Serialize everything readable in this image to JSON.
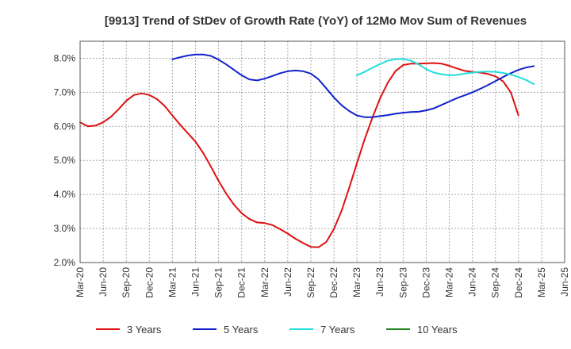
{
  "chart_data": {
    "type": "line",
    "title": "[9913]  Trend of StDev of Growth Rate (YoY) of 12Mo Mov Sum of Revenues",
    "xlabel": "",
    "ylabel": "",
    "ylim": [
      2.0,
      8.5
    ],
    "yticks": [
      2.0,
      3.0,
      4.0,
      5.0,
      6.0,
      7.0,
      8.0
    ],
    "ytick_labels": [
      "2.0%",
      "3.0%",
      "4.0%",
      "5.0%",
      "6.0%",
      "7.0%",
      "8.0%"
    ],
    "xtick_labels": [
      "Mar-20",
      "Jun-20",
      "Sep-20",
      "Dec-20",
      "Mar-21",
      "Jun-21",
      "Sep-21",
      "Dec-21",
      "Mar-22",
      "Jun-22",
      "Sep-22",
      "Dec-22",
      "Mar-23",
      "Jun-23",
      "Sep-23",
      "Dec-23",
      "Mar-24",
      "Jun-24",
      "Sep-24",
      "Dec-24",
      "Mar-25",
      "Jun-25"
    ],
    "x_start": "Mar-20",
    "grid": true,
    "legend_position": "bottom",
    "series": [
      {
        "name": "3 Years",
        "color": "#dd1111",
        "start_index": 0,
        "values": [
          6.12,
          6.0,
          6.02,
          6.12,
          6.28,
          6.5,
          6.75,
          6.92,
          6.97,
          6.92,
          6.8,
          6.6,
          6.32,
          6.05,
          5.8,
          5.55,
          5.22,
          4.82,
          4.4,
          4.02,
          3.7,
          3.45,
          3.28,
          3.18,
          3.16,
          3.1,
          2.98,
          2.85,
          2.7,
          2.57,
          2.46,
          2.45,
          2.6,
          2.98,
          3.52,
          4.2,
          4.92,
          5.62,
          6.25,
          6.82,
          7.28,
          7.62,
          7.8,
          7.84,
          7.84,
          7.85,
          7.86,
          7.84,
          7.78,
          7.7,
          7.63,
          7.6,
          7.58,
          7.54,
          7.47,
          7.32,
          7.0,
          6.32
        ]
      },
      {
        "name": "5 Years",
        "color": "#1122cc",
        "start_index": 12,
        "values": [
          7.97,
          8.03,
          8.08,
          8.11,
          8.11,
          8.07,
          7.96,
          7.82,
          7.66,
          7.5,
          7.38,
          7.35,
          7.4,
          7.48,
          7.56,
          7.62,
          7.64,
          7.62,
          7.55,
          7.38,
          7.12,
          6.85,
          6.62,
          6.45,
          6.32,
          6.27,
          6.27,
          6.3,
          6.33,
          6.37,
          6.4,
          6.42,
          6.43,
          6.47,
          6.53,
          6.63,
          6.73,
          6.83,
          6.91,
          7.0,
          7.1,
          7.21,
          7.33,
          7.45,
          7.56,
          7.66,
          7.73,
          7.77
        ]
      },
      {
        "name": "7 Years",
        "color": "#22dddd",
        "start_index": 36,
        "values": [
          7.5,
          7.6,
          7.72,
          7.83,
          7.93,
          7.97,
          7.98,
          7.93,
          7.82,
          7.68,
          7.58,
          7.53,
          7.5,
          7.51,
          7.55,
          7.58,
          7.6,
          7.61,
          7.6,
          7.57,
          7.52,
          7.45,
          7.36,
          7.24
        ]
      },
      {
        "name": "10 Years",
        "color": "#228822",
        "start_index": 0,
        "values": []
      }
    ]
  }
}
